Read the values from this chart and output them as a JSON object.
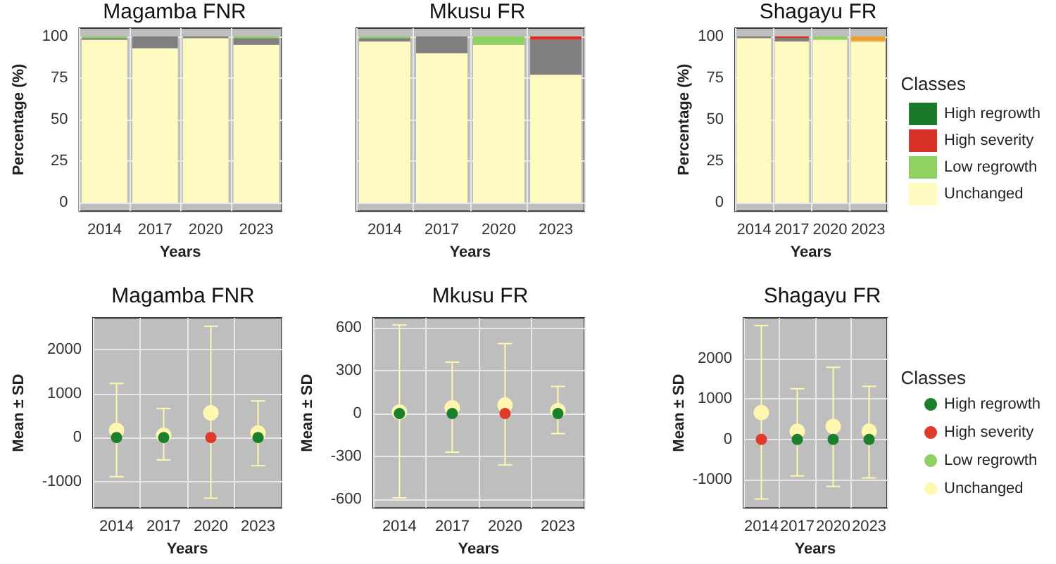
{
  "chart_data": [
    {
      "type": "bar",
      "title": "Magamba FNR",
      "xlabel": "Years",
      "ylabel": "Percentage (%)",
      "categories": [
        "2014",
        "2017",
        "2020",
        "2023"
      ],
      "stacked": true,
      "ylim": [
        -5,
        105
      ],
      "yticks": [
        0,
        25,
        50,
        75,
        100
      ],
      "grid": true,
      "series": [
        {
          "color": "#fffac0",
          "values": [
            98,
            93,
            99,
            95
          ]
        },
        {
          "color": "#7f7f7f",
          "values": [
            1,
            7,
            1,
            4
          ]
        },
        {
          "color": "#8fd162",
          "values": [
            1,
            0,
            0,
            1
          ]
        }
      ]
    },
    {
      "type": "bar",
      "title": "Mkusu FR",
      "xlabel": "Years",
      "categories": [
        "2014",
        "2017",
        "2020",
        "2023"
      ],
      "stacked": true,
      "ylim": [
        -5,
        105
      ],
      "yticks": [
        0,
        25,
        50,
        75,
        100
      ],
      "grid": true,
      "tick_labels": "x",
      "series": [
        {
          "color": "#fffac0",
          "values": [
            97,
            90,
            95,
            77
          ]
        },
        {
          "color": "#7f7f7f",
          "values": [
            2,
            10,
            0,
            21
          ]
        },
        {
          "color": "#8fd162",
          "values": [
            1,
            0,
            5,
            0
          ]
        },
        {
          "color": "#d73027",
          "values": [
            0,
            0,
            0,
            2
          ]
        }
      ]
    },
    {
      "type": "bar",
      "title": "Shagayu FR",
      "xlabel": "Years",
      "ylabel": "Percentage (%)",
      "legend_title": "Classes",
      "legend": "right",
      "categories": [
        "2014",
        "2017",
        "2020",
        "2023"
      ],
      "stacked": true,
      "ylim": [
        -5,
        105
      ],
      "yticks": [
        0,
        25,
        50,
        75,
        100
      ],
      "grid": true,
      "series": [
        {
          "name": "Unchanged",
          "color": "#fffac0",
          "values": [
            99,
            97,
            98,
            97
          ]
        },
        {
          "color": "#7f7f7f",
          "values": [
            1,
            2,
            0,
            0
          ]
        },
        {
          "name": "Low regrowth",
          "color": "#8fd162",
          "values": [
            0,
            0,
            2,
            0
          ]
        },
        {
          "name": "High severity",
          "color": "#d73027",
          "values": [
            0,
            1,
            0,
            0
          ]
        },
        {
          "name": "High regrowth",
          "color": "#1a7a2a",
          "values": [
            0,
            0,
            0,
            0
          ]
        },
        {
          "color": "#f0a030",
          "values": [
            0,
            0,
            0,
            3
          ]
        }
      ]
    },
    {
      "type": "scatter",
      "title": "Magamba FNR",
      "xlabel": "Years",
      "ylabel": "Mean ± SD",
      "categories": [
        "2014",
        "2017",
        "2020",
        "2023"
      ],
      "ylim": [
        -1600,
        2720
      ],
      "yticks": [
        -1000,
        0,
        1000,
        2000
      ],
      "grid": true,
      "marker": "circle",
      "series": [
        {
          "color": "#1b7f2b",
          "values": [
            0,
            0,
            null,
            0
          ]
        },
        {
          "color": "#e03a2a",
          "values": [
            null,
            null,
            0,
            null
          ]
        },
        {
          "color": "#fff7b0",
          "values": [
            160,
            50,
            560,
            100
          ],
          "errors": [
            [
              -890,
              1230
            ],
            [
              -510,
              660
            ],
            [
              -1380,
              2530
            ],
            [
              -640,
              830
            ]
          ]
        }
      ]
    },
    {
      "type": "scatter",
      "title": "Mkusu FR",
      "xlabel": "Years",
      "ylabel": "Mean ± SD",
      "categories": [
        "2014",
        "2017",
        "2020",
        "2023"
      ],
      "ylim": [
        -660,
        670
      ],
      "yticks": [
        -600,
        -300,
        0,
        300,
        600
      ],
      "grid": true,
      "marker": "circle",
      "series": [
        {
          "color": "#1b7f2b",
          "values": [
            0,
            0,
            null,
            0
          ]
        },
        {
          "color": "#e03a2a",
          "values": [
            null,
            null,
            0,
            null
          ]
        },
        {
          "color": "#fff7b0",
          "values": [
            10,
            40,
            60,
            20
          ],
          "errors": [
            [
              -590,
              620
            ],
            [
              -270,
              360
            ],
            [
              -360,
              490
            ],
            [
              -140,
              190
            ]
          ]
        }
      ]
    },
    {
      "type": "scatter",
      "title": "Shagayu FR",
      "xlabel": "Years",
      "ylabel": "Mean ± SD",
      "legend_title": "Classes",
      "legend": "right",
      "categories": [
        "2014",
        "2017",
        "2020",
        "2023"
      ],
      "ylim": [
        -1690,
        3000
      ],
      "yticks": [
        -1000,
        0,
        1000,
        2000
      ],
      "grid": true,
      "marker": "circle",
      "series": [
        {
          "name": "High regrowth",
          "color": "#1b7f2b",
          "values": [
            null,
            0,
            0,
            0
          ]
        },
        {
          "name": "High severity",
          "color": "#e03a2a",
          "values": [
            0,
            null,
            null,
            null
          ]
        },
        {
          "name": "Low regrowth",
          "color": "#8fd162",
          "values": [
            null,
            null,
            null,
            null
          ]
        },
        {
          "name": "Unchanged",
          "color": "#fff7b0",
          "values": [
            660,
            200,
            320,
            200
          ],
          "errors": [
            [
              -1470,
              2810
            ],
            [
              -900,
              1250
            ],
            [
              -1160,
              1780
            ],
            [
              -950,
              1310
            ]
          ]
        }
      ]
    }
  ]
}
